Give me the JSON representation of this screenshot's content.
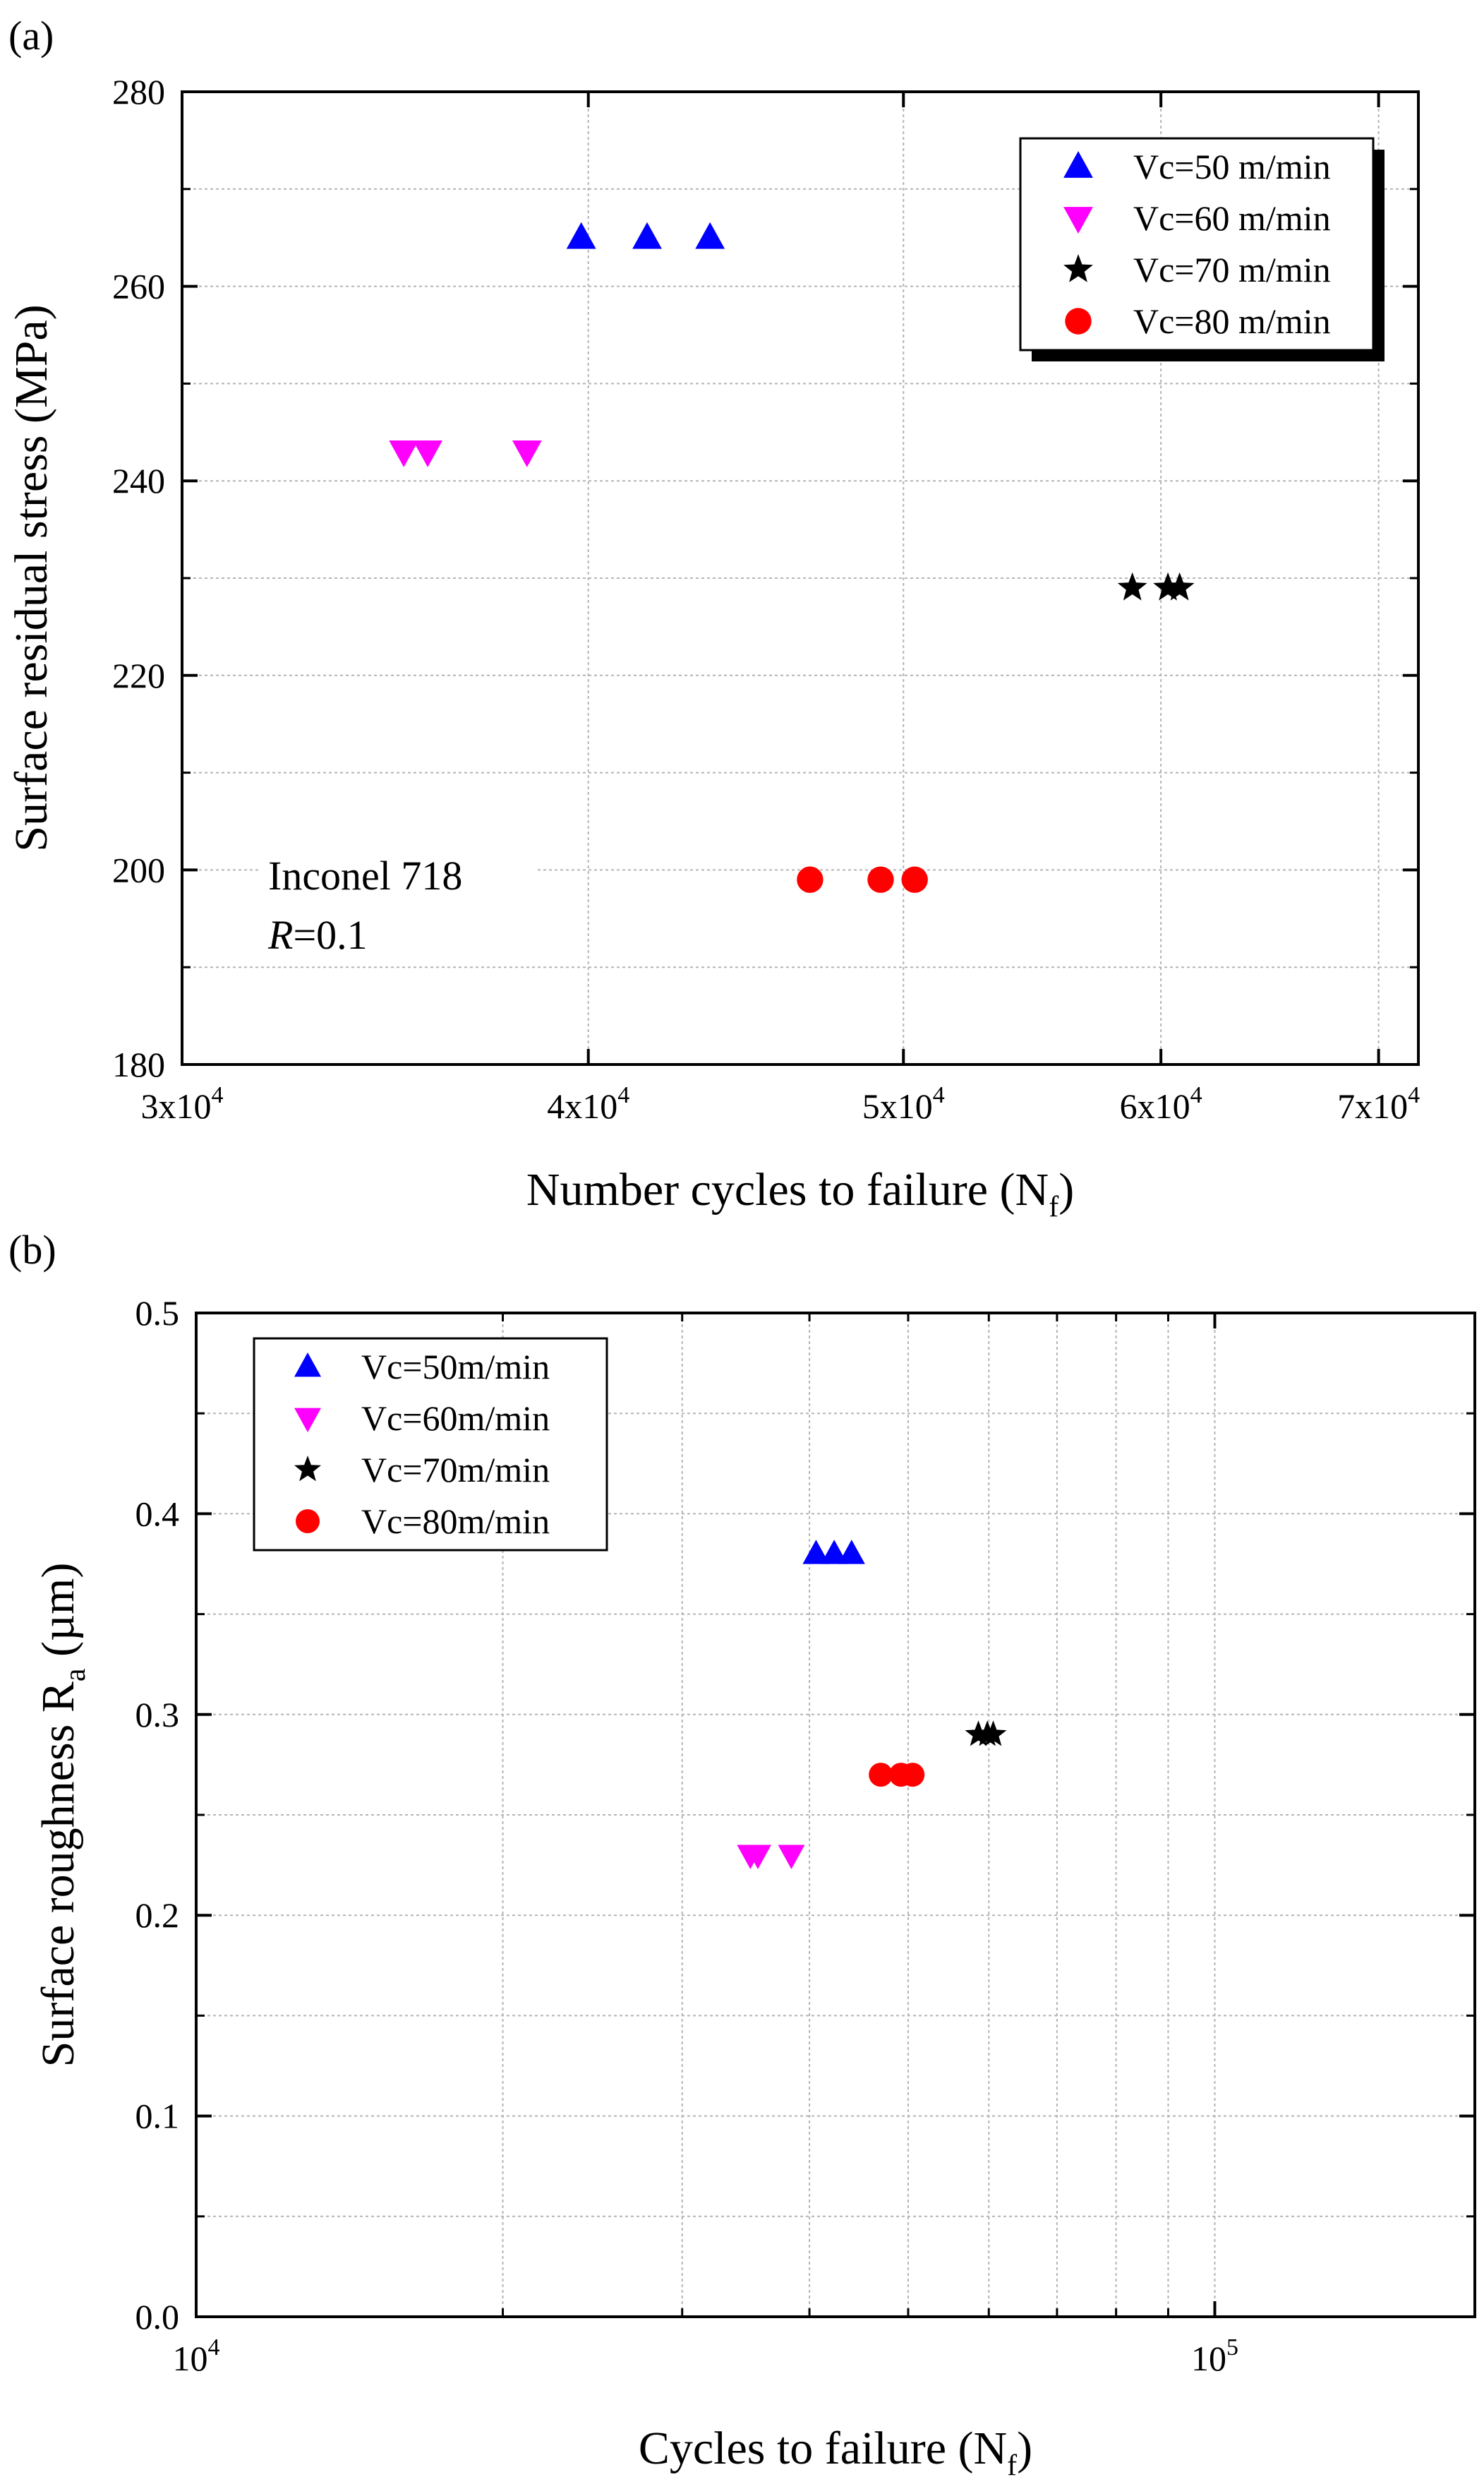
{
  "chart_data": [
    {
      "panel_label": "(a)",
      "type": "scatter",
      "xscale": "log",
      "xlim": [
        30000,
        72000
      ],
      "ylim": [
        180,
        280
      ],
      "xticks": [
        {
          "value": 30000,
          "base": "3x10",
          "exp": "4"
        },
        {
          "value": 40000,
          "base": "4x10",
          "exp": "4"
        },
        {
          "value": 50000,
          "base": "5x10",
          "exp": "4"
        },
        {
          "value": 60000,
          "base": "6x10",
          "exp": "4"
        },
        {
          "value": 70000,
          "base": "7x10",
          "exp": "4"
        }
      ],
      "yticks": [
        {
          "value": 180,
          "label": "180"
        },
        {
          "value": 200,
          "label": "200"
        },
        {
          "value": 220,
          "label": "220"
        },
        {
          "value": 240,
          "label": "240"
        },
        {
          "value": 260,
          "label": "260"
        },
        {
          "value": 280,
          "label": "280"
        }
      ],
      "xlabel": {
        "main": "Number cycles to failure (N",
        "sub": "f",
        "close": ")"
      },
      "ylabel": "Surface residual stress (MPa)",
      "grid": true,
      "legend_position": "top-right",
      "annotation": {
        "line1": "Inconel 718",
        "line2_italic": "R",
        "line2_rest": "=0.1"
      },
      "series": [
        {
          "name": "Vc=50 m/min",
          "marker": "triangle-up",
          "color": "#0000ff",
          "points": [
            [
              39800,
              265
            ],
            [
              41700,
              265
            ],
            [
              43600,
              265
            ]
          ]
        },
        {
          "name": "Vc=60 m/min",
          "marker": "triangle-down",
          "color": "#ff00ff",
          "points": [
            [
              35100,
              243
            ],
            [
              35700,
              243
            ],
            [
              38300,
              243
            ]
          ]
        },
        {
          "name": "Vc=70 m/min",
          "marker": "star",
          "color": "#000000",
          "points": [
            [
              58800,
              229
            ],
            [
              60300,
              229
            ],
            [
              60800,
              229
            ]
          ]
        },
        {
          "name": "Vc=80 m/min",
          "marker": "circle",
          "color": "#ff0000",
          "points": [
            [
              46800,
              199
            ],
            [
              49200,
              199
            ],
            [
              50400,
              199
            ]
          ]
        }
      ]
    },
    {
      "panel_label": "(b)",
      "type": "scatter",
      "xscale": "log",
      "xlim": [
        10000,
        180000
      ],
      "ylim": [
        0.0,
        0.5
      ],
      "xticks": [
        {
          "value": 10000,
          "base": "10",
          "exp": "4"
        },
        {
          "value": 100000,
          "base": "10",
          "exp": "5"
        }
      ],
      "yticks": [
        {
          "value": 0.0,
          "label": "0.0"
        },
        {
          "value": 0.1,
          "label": "0.1"
        },
        {
          "value": 0.2,
          "label": "0.2"
        },
        {
          "value": 0.3,
          "label": "0.3"
        },
        {
          "value": 0.4,
          "label": "0.4"
        },
        {
          "value": 0.5,
          "label": "0.5"
        }
      ],
      "xlabel": {
        "main": "Cycles to failure (N",
        "sub": "f",
        "close": ")"
      },
      "ylabel": {
        "main": "Surface roughness R",
        "sub": "a",
        "close": " (µm)"
      },
      "grid": true,
      "legend_position": "top-left",
      "series": [
        {
          "name": "Vc=50m/min",
          "marker": "triangle-up",
          "color": "#0000ff",
          "points": [
            [
              40600,
              0.38
            ],
            [
              42300,
              0.38
            ],
            [
              44000,
              0.38
            ]
          ]
        },
        {
          "name": "Vc=60m/min",
          "marker": "triangle-down",
          "color": "#ff00ff",
          "points": [
            [
              35000,
              0.23
            ],
            [
              35600,
              0.23
            ],
            [
              38400,
              0.23
            ]
          ]
        },
        {
          "name": "Vc=70m/min",
          "marker": "star",
          "color": "#000000",
          "points": [
            [
              58600,
              0.29
            ],
            [
              59800,
              0.29
            ],
            [
              60600,
              0.29
            ]
          ]
        },
        {
          "name": "Vc=80m/min",
          "marker": "circle",
          "color": "#ff0000",
          "points": [
            [
              47000,
              0.27
            ],
            [
              49200,
              0.27
            ],
            [
              50500,
              0.27
            ]
          ]
        }
      ]
    }
  ]
}
